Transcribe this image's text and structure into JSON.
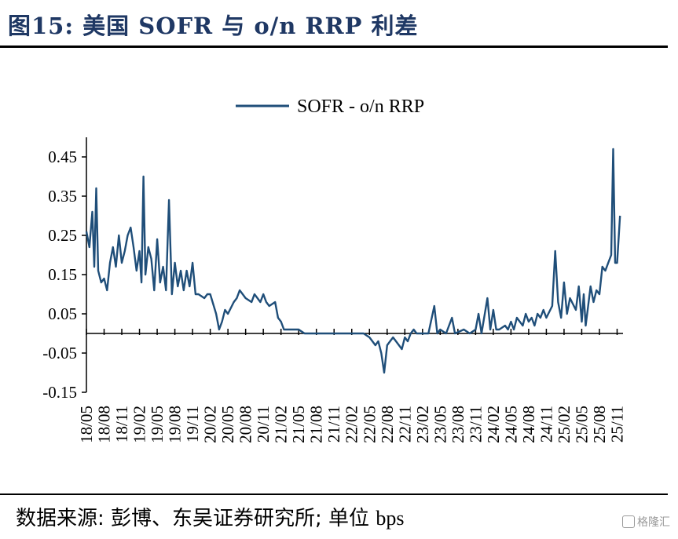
{
  "figure": {
    "title": "图15:  美国 SOFR 与 o/n RRP 利差",
    "source_prefix": "数据来源:  彭博、东吴证券研究所;  单位 ",
    "source_unit": "bps",
    "watermark": "格隆汇"
  },
  "colors": {
    "line": "#1f4e79",
    "axis": "#000000"
  },
  "chart_data": {
    "type": "line",
    "title": "",
    "xlabel": "",
    "ylabel": "",
    "ylim": [
      -0.15,
      0.5
    ],
    "yticks": [
      0.45,
      0.35,
      0.25,
      0.15,
      0.05,
      -0.05,
      -0.15
    ],
    "ytick_labels": [
      "0.45",
      "0.35",
      "0.25",
      "0.15",
      "0.05",
      "-0.05",
      "-0.15"
    ],
    "x_ticks": [
      "18/05",
      "18/08",
      "18/11",
      "19/02",
      "19/05",
      "19/08",
      "19/11",
      "20/02",
      "20/05",
      "20/08",
      "20/11",
      "21/02",
      "21/05",
      "21/08",
      "21/11",
      "22/02",
      "22/05",
      "22/08",
      "22/11",
      "23/02",
      "23/05",
      "23/08",
      "23/11",
      "24/02",
      "24/05",
      "24/08",
      "24/11",
      "25/02",
      "25/05",
      "25/08",
      "25/11"
    ],
    "legend": {
      "position": "top-center"
    },
    "grid": false,
    "series": [
      {
        "name": "SOFR - o/n RRP",
        "points": [
          [
            "18/05",
            0.26
          ],
          [
            "18/05",
            0.22
          ],
          [
            "18/06",
            0.31
          ],
          [
            "18/06",
            0.17
          ],
          [
            "18/06",
            0.37
          ],
          [
            "18/07",
            0.16
          ],
          [
            "18/07",
            0.13
          ],
          [
            "18/08",
            0.14
          ],
          [
            "18/08",
            0.11
          ],
          [
            "18/09",
            0.18
          ],
          [
            "18/09",
            0.22
          ],
          [
            "18/10",
            0.17
          ],
          [
            "18/10",
            0.25
          ],
          [
            "18/11",
            0.18
          ],
          [
            "18/11",
            0.21
          ],
          [
            "18/12",
            0.25
          ],
          [
            "18/12",
            0.27
          ],
          [
            "19/01",
            0.22
          ],
          [
            "19/01",
            0.16
          ],
          [
            "19/02",
            0.21
          ],
          [
            "19/02",
            0.13
          ],
          [
            "19/02",
            0.4
          ],
          [
            "19/03",
            0.15
          ],
          [
            "19/03",
            0.22
          ],
          [
            "19/04",
            0.19
          ],
          [
            "19/04",
            0.11
          ],
          [
            "19/05",
            0.24
          ],
          [
            "19/05",
            0.13
          ],
          [
            "19/06",
            0.17
          ],
          [
            "19/06",
            0.11
          ],
          [
            "19/07",
            0.34
          ],
          [
            "19/07",
            0.1
          ],
          [
            "19/08",
            0.18
          ],
          [
            "19/08",
            0.12
          ],
          [
            "19/09",
            0.16
          ],
          [
            "19/09",
            0.11
          ],
          [
            "19/10",
            0.16
          ],
          [
            "19/10",
            0.12
          ],
          [
            "19/11",
            0.18
          ],
          [
            "19/11",
            0.1
          ],
          [
            "19/12",
            0.1
          ],
          [
            "20/01",
            0.09
          ],
          [
            "20/01",
            0.1
          ],
          [
            "20/02",
            0.1
          ],
          [
            "20/03",
            0.05
          ],
          [
            "20/03",
            0.01
          ],
          [
            "20/04",
            0.03
          ],
          [
            "20/04",
            0.06
          ],
          [
            "20/05",
            0.05
          ],
          [
            "20/06",
            0.08
          ],
          [
            "20/06",
            0.09
          ],
          [
            "20/07",
            0.11
          ],
          [
            "20/07",
            0.1
          ],
          [
            "20/08",
            0.09
          ],
          [
            "20/09",
            0.08
          ],
          [
            "20/09",
            0.1
          ],
          [
            "20/10",
            0.09
          ],
          [
            "20/10",
            0.08
          ],
          [
            "20/11",
            0.1
          ],
          [
            "20/11",
            0.08
          ],
          [
            "20/12",
            0.07
          ],
          [
            "21/01",
            0.08
          ],
          [
            "21/01",
            0.04
          ],
          [
            "21/02",
            0.03
          ],
          [
            "21/02",
            0.01
          ],
          [
            "21/03",
            0.01
          ],
          [
            "21/05",
            0.01
          ],
          [
            "21/06",
            0.0
          ],
          [
            "21/09",
            0.0
          ],
          [
            "22/01",
            0.0
          ],
          [
            "22/04",
            0.0
          ],
          [
            "22/05",
            -0.01
          ],
          [
            "22/06",
            -0.03
          ],
          [
            "22/06",
            -0.02
          ],
          [
            "22/07",
            -0.05
          ],
          [
            "22/07",
            -0.1
          ],
          [
            "22/08",
            -0.03
          ],
          [
            "22/08",
            -0.02
          ],
          [
            "22/09",
            -0.01
          ],
          [
            "22/10",
            -0.03
          ],
          [
            "22/10",
            -0.04
          ],
          [
            "22/11",
            -0.01
          ],
          [
            "22/11",
            -0.02
          ],
          [
            "22/12",
            0.0
          ],
          [
            "22/12",
            0.01
          ],
          [
            "23/01",
            0.0
          ],
          [
            "23/03",
            0.0
          ],
          [
            "23/04",
            0.07
          ],
          [
            "23/04",
            0.0
          ],
          [
            "23/05",
            0.01
          ],
          [
            "23/06",
            0.0
          ],
          [
            "23/07",
            0.04
          ],
          [
            "23/07",
            0.0
          ],
          [
            "23/09",
            0.01
          ],
          [
            "23/10",
            0.0
          ],
          [
            "23/11",
            0.01
          ],
          [
            "23/11",
            0.05
          ],
          [
            "23/12",
            0.0
          ],
          [
            "24/01",
            0.09
          ],
          [
            "24/01",
            0.01
          ],
          [
            "24/02",
            0.06
          ],
          [
            "24/02",
            0.01
          ],
          [
            "24/03",
            0.01
          ],
          [
            "24/04",
            0.02
          ],
          [
            "24/04",
            0.01
          ],
          [
            "24/05",
            0.03
          ],
          [
            "24/05",
            0.01
          ],
          [
            "24/06",
            0.04
          ],
          [
            "24/07",
            0.02
          ],
          [
            "24/07",
            0.05
          ],
          [
            "24/08",
            0.03
          ],
          [
            "24/08",
            0.04
          ],
          [
            "24/09",
            0.02
          ],
          [
            "24/09",
            0.05
          ],
          [
            "24/10",
            0.04
          ],
          [
            "24/10",
            0.06
          ],
          [
            "24/11",
            0.04
          ],
          [
            "24/12",
            0.07
          ],
          [
            "24/12",
            0.21
          ],
          [
            "25/01",
            0.08
          ],
          [
            "25/01",
            0.04
          ],
          [
            "25/02",
            0.13
          ],
          [
            "25/02",
            0.05
          ],
          [
            "25/03",
            0.09
          ],
          [
            "25/04",
            0.06
          ],
          [
            "25/04",
            0.12
          ],
          [
            "25/05",
            0.03
          ],
          [
            "25/05",
            0.1
          ],
          [
            "25/05",
            0.02
          ],
          [
            "25/06",
            0.06
          ],
          [
            "25/06",
            0.12
          ],
          [
            "25/07",
            0.08
          ],
          [
            "25/07",
            0.11
          ],
          [
            "25/08",
            0.1
          ],
          [
            "25/08",
            0.17
          ],
          [
            "25/09",
            0.16
          ],
          [
            "25/09",
            0.18
          ],
          [
            "25/10",
            0.2
          ],
          [
            "25/10",
            0.47
          ],
          [
            "25/10",
            0.18
          ],
          [
            "25/11",
            0.18
          ],
          [
            "25/11",
            0.3
          ]
        ]
      }
    ]
  }
}
